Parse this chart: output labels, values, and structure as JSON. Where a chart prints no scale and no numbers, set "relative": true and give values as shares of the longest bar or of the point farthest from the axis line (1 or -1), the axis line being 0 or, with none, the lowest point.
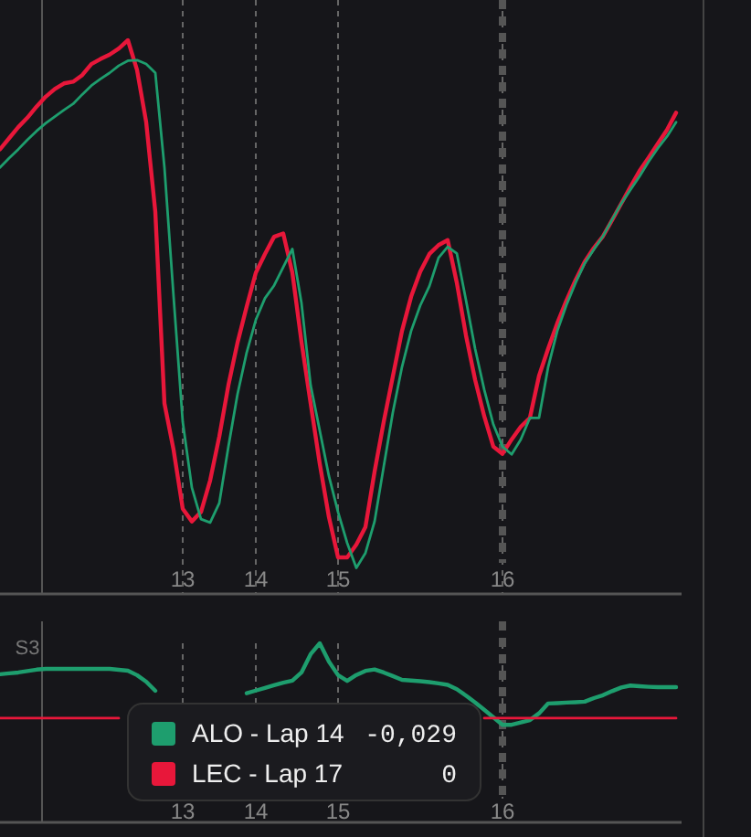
{
  "chart_data": [
    {
      "type": "line",
      "relative": true,
      "categories": [
        null,
        null,
        null,
        null,
        null,
        null,
        null,
        null,
        null,
        null,
        null,
        null,
        null,
        null,
        null,
        null,
        null,
        null,
        null,
        null,
        "13",
        null,
        null,
        null,
        null,
        null,
        null,
        null,
        "14",
        null,
        null,
        null,
        null,
        null,
        null,
        null,
        null,
        "15",
        null,
        null,
        null,
        null,
        null,
        null,
        null,
        null,
        null,
        null,
        null,
        null,
        null,
        null,
        null,
        null,
        null,
        "16",
        null,
        null,
        null,
        null,
        null,
        null,
        null,
        null,
        null,
        null,
        null,
        null,
        null,
        null,
        null,
        null,
        null,
        null,
        null
      ],
      "grid": "x",
      "series": [
        {
          "color": "#e8173a",
          "values": [
            0.803,
            0.823,
            0.843,
            0.86,
            0.88,
            0.898,
            0.912,
            0.922,
            0.925,
            0.937,
            0.957,
            0.966,
            0.974,
            0.985,
            1,
            0.946,
            0.852,
            0.69,
            0.344,
            0.26,
            0.154,
            0.131,
            0.148,
            0.205,
            0.284,
            0.377,
            0.454,
            0.519,
            0.58,
            0.614,
            0.645,
            0.651,
            0.58,
            0.455,
            0.344,
            0.235,
            0.139,
            0.066,
            0.066,
            0.089,
            0.121,
            0.221,
            0.311,
            0.393,
            0.475,
            0.537,
            0.582,
            0.614,
            0.63,
            0.639,
            0.562,
            0.467,
            0.387,
            0.321,
            0.266,
            0.253,
            0.279,
            0.302,
            0.318,
            0.394,
            0.443,
            0.489,
            0.53,
            0.567,
            0.6,
            0.625,
            0.646,
            0.675,
            0.705,
            0.735,
            0.764,
            0.788,
            0.813,
            0.838,
            0.869
          ]
        },
        {
          "color": "#1e9e6e",
          "values": [
            0.77,
            0.787,
            0.803,
            0.82,
            0.836,
            0.85,
            0.862,
            0.874,
            0.885,
            0.902,
            0.918,
            0.93,
            0.941,
            0.954,
            0.963,
            0.964,
            0.957,
            0.941,
            0.77,
            0.537,
            0.311,
            0.192,
            0.135,
            0.129,
            0.164,
            0.266,
            0.361,
            0.436,
            0.495,
            0.534,
            0.557,
            0.59,
            0.623,
            0.525,
            0.377,
            0.295,
            0.213,
            0.148,
            0.092,
            0.047,
            0.074,
            0.131,
            0.23,
            0.328,
            0.41,
            0.475,
            0.521,
            0.556,
            0.607,
            0.627,
            0.615,
            0.531,
            0.443,
            0.369,
            0.306,
            0.266,
            0.252,
            0.279,
            0.318,
            0.318,
            0.41,
            0.475,
            0.522,
            0.562,
            0.597,
            0.622,
            0.646,
            0.676,
            0.705,
            0.73,
            0.754,
            0.781,
            0.805,
            0.826,
            0.852
          ]
        }
      ],
      "ref_lines": [
        {
          "axis": "x",
          "value": "16",
          "color": "#555555",
          "line_style": "dashed"
        }
      ]
    },
    {
      "type": "line",
      "relative": true,
      "categories": [
        null,
        null,
        null,
        null,
        null,
        null,
        null,
        null,
        null,
        null,
        null,
        null,
        null,
        null,
        null,
        null,
        null,
        null,
        null,
        null,
        "13",
        null,
        null,
        null,
        null,
        null,
        null,
        null,
        "14",
        null,
        null,
        null,
        null,
        null,
        null,
        null,
        null,
        "15",
        null,
        null,
        null,
        null,
        null,
        null,
        null,
        null,
        null,
        null,
        null,
        null,
        null,
        null,
        null,
        null,
        null,
        "16",
        null,
        null,
        null,
        null,
        null,
        null,
        null,
        null,
        null,
        null,
        null,
        null,
        null,
        null,
        null,
        null,
        null,
        null,
        null
      ],
      "grid": "x",
      "legend": "bottom left",
      "series": [
        {
          "name": "ALO - Lap 14",
          "color": "#1e9e6e",
          "values": [
            0.827,
            0.832,
            0.837,
            0.845,
            0.853,
            0.857,
            0.857,
            0.857,
            0.857,
            0.857,
            0.857,
            0.857,
            0.857,
            0.852,
            0.847,
            0.822,
            0.786,
            0.735,
            null,
            null,
            null,
            null,
            null,
            null,
            null,
            null,
            null,
            0.721,
            0.736,
            0.751,
            0.766,
            0.78,
            0.791,
            0.837,
            0.939,
            1,
            0.898,
            0.822,
            0.79,
            0.823,
            0.846,
            0.854,
            0.837,
            0.817,
            0.796,
            0.792,
            0.788,
            0.783,
            0.776,
            0.768,
            0.744,
            0.708,
            0.67,
            0.629,
            0.587,
            0.545,
            0.545,
            0.558,
            0.571,
            0.609,
            0.664,
            0.666,
            0.669,
            0.671,
            0.674,
            0.694,
            0.71,
            0.733,
            0.753,
            0.764,
            0.76,
            0.757,
            0.755,
            0.755,
            0.755
          ]
        },
        {
          "name": "LEC - Lap 17",
          "color": "#e8173a",
          "values": [
            0.582,
            0.582,
            0.582,
            0.582,
            0.582,
            0.582,
            0.582,
            0.582,
            0.582,
            0.582,
            0.582,
            0.582,
            0.582,
            0.582,
            null,
            null,
            null,
            null,
            null,
            null,
            null,
            null,
            null,
            null,
            null,
            null,
            null,
            null,
            null,
            null,
            null,
            null,
            null,
            null,
            null,
            null,
            null,
            null,
            null,
            null,
            null,
            null,
            null,
            null,
            null,
            null,
            null,
            null,
            null,
            null,
            null,
            null,
            null,
            0.582,
            0.582,
            0.582,
            0.582,
            0.582,
            0.582,
            0.582,
            0.582,
            0.582,
            0.582,
            0.582,
            0.582,
            0.582,
            0.582,
            0.582,
            0.582,
            0.582,
            0.582,
            0.582,
            0.582,
            0.582,
            0.582
          ]
        }
      ],
      "ref_lines": [
        {
          "axis": "x",
          "value": "16",
          "color": "#555555",
          "line_style": "dashed"
        }
      ],
      "annotations": [
        "S3",
        "-0,029",
        "0"
      ]
    }
  ]
}
